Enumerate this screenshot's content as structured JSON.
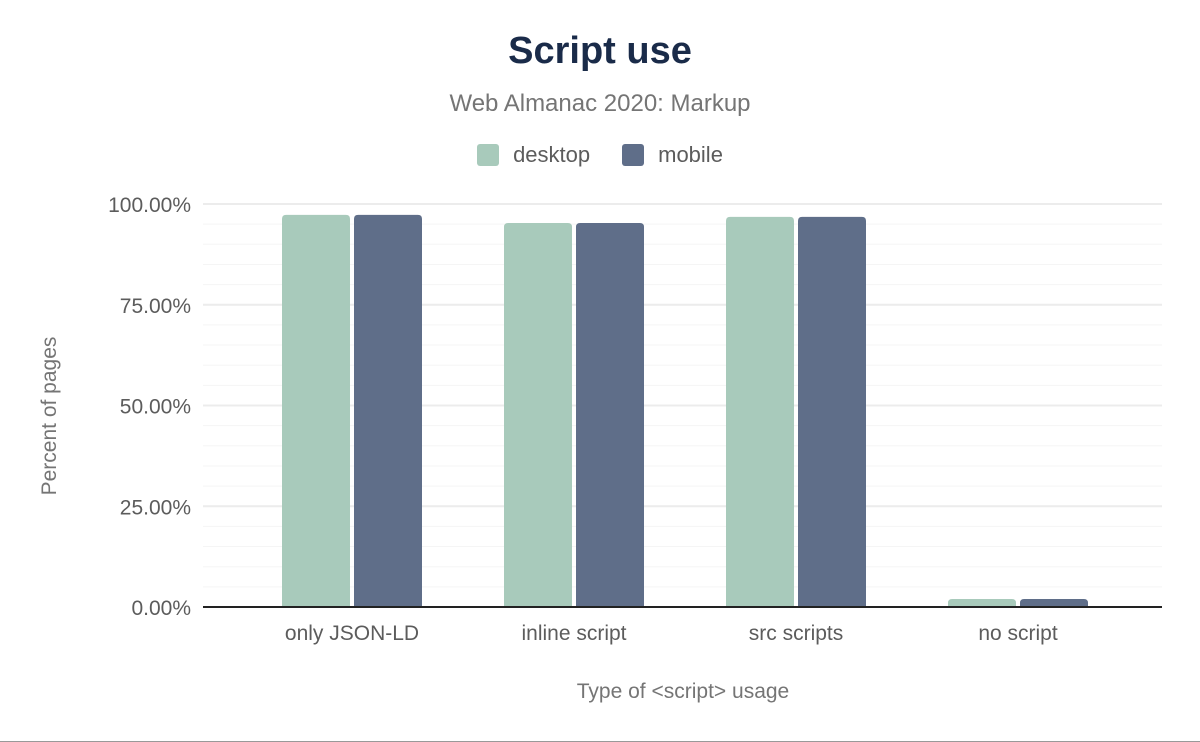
{
  "chart_data": {
    "type": "bar",
    "title": "Script use",
    "subtitle": "Web Almanac 2020: Markup",
    "xlabel": "Type of <script> usage",
    "ylabel": "Percent of pages",
    "categories": [
      "only JSON-LD",
      "inline script",
      "src scripts",
      "no script"
    ],
    "series": [
      {
        "name": "desktop",
        "color": "#a8cabb",
        "values": [
          97.3,
          95.3,
          96.8,
          2.0
        ]
      },
      {
        "name": "mobile",
        "color": "#5f6e89",
        "values": [
          97.3,
          95.3,
          96.8,
          2.0
        ]
      }
    ],
    "ylim": [
      0,
      100
    ],
    "yticks": [
      "0.00%",
      "25.00%",
      "50.00%",
      "75.00%",
      "100.00%"
    ],
    "grid": true,
    "legend": "top"
  }
}
